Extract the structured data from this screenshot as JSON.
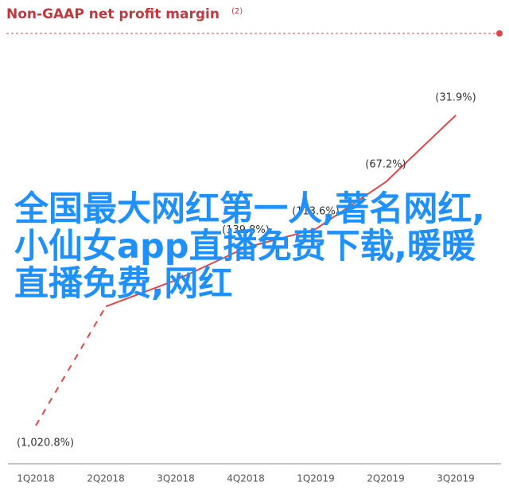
{
  "chart_data": {
    "type": "line",
    "title": "Non-GAAP net profit margin",
    "title_note": "(2)",
    "categories": [
      "1Q2018",
      "2Q2018",
      "3Q2018",
      "4Q2018",
      "1Q2019",
      "2Q2019",
      "3Q2019"
    ],
    "values": [
      -1020.8,
      -270,
      -201,
      -139.8,
      -113.6,
      -67.2,
      -31.9
    ],
    "value_labels": [
      "(1,020.8%)",
      null,
      null,
      "(139.8%)",
      "(113.6%)",
      "(67.2%)",
      "(31.9%)"
    ],
    "color": "#e0474c",
    "log_scale": true,
    "dashed_first_segment": true,
    "overlay_text": "全国最大网红第一人,著名网红,小仙女app直播免费下载,暖暖直播免费,网红"
  }
}
